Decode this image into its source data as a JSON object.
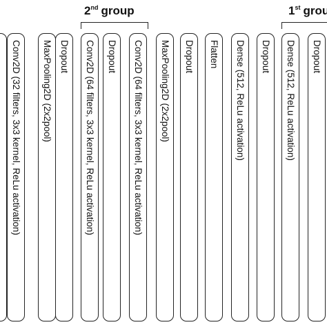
{
  "groups": [
    {
      "sup": "nd",
      "word": "group",
      "prefix": "2"
    },
    {
      "sup": "st",
      "word": "group",
      "prefix": "1"
    }
  ],
  "layers": [
    "Conv2D (32 filters, 3x3 kernel, ReLu activation)",
    "MaxPooling2D (2x2pool)",
    "Dropout",
    "Conv2D (64 filters, 3x3 kernel, ReLu activation)",
    "Dropout",
    "Conv2D (64 filters, 3x3 kernel, ReLu activation)",
    "MaxPooling2D (2x2pool)",
    "Dropout",
    "Flatten",
    "Dense (512, ReLu activation)",
    "Dropout",
    "Dense (512, ReLu activation)",
    "Dropout"
  ]
}
